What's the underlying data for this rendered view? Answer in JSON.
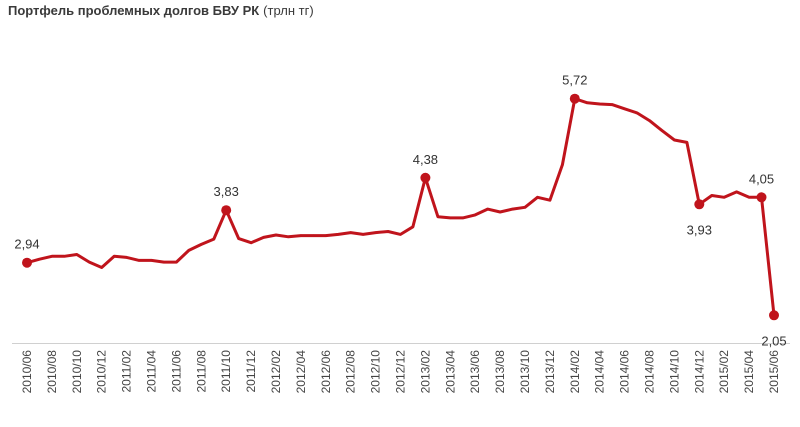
{
  "chart_data": {
    "type": "line",
    "title": "Портфель проблемных долгов БВУ РК",
    "unit": "(трлн тг)",
    "line_color": "#c0141c",
    "x": [
      "2010/06",
      "2010/07",
      "2010/08",
      "2010/09",
      "2010/10",
      "2010/11",
      "2010/12",
      "2011/01",
      "2011/02",
      "2011/03",
      "2011/04",
      "2011/05",
      "2011/06",
      "2011/07",
      "2011/08",
      "2011/09",
      "2011/10",
      "2011/11",
      "2011/12",
      "2012/01",
      "2012/02",
      "2012/03",
      "2012/04",
      "2012/05",
      "2012/06",
      "2012/07",
      "2012/08",
      "2012/09",
      "2012/10",
      "2012/11",
      "2012/12",
      "2013/01",
      "2013/02",
      "2013/03",
      "2013/04",
      "2013/05",
      "2013/06",
      "2013/07",
      "2013/08",
      "2013/09",
      "2013/10",
      "2013/11",
      "2013/12",
      "2014/01",
      "2014/02",
      "2014/03",
      "2014/04",
      "2014/05",
      "2014/06",
      "2014/07",
      "2014/08",
      "2014/09",
      "2014/10",
      "2014/11",
      "2014/12",
      "2015/01",
      "2015/02",
      "2015/03",
      "2015/04",
      "2015/05",
      "2015/06"
    ],
    "values": [
      2.94,
      3.0,
      3.05,
      3.05,
      3.08,
      2.95,
      2.86,
      3.05,
      3.03,
      2.98,
      2.98,
      2.95,
      2.95,
      3.15,
      3.25,
      3.34,
      3.83,
      3.35,
      3.28,
      3.37,
      3.41,
      3.38,
      3.4,
      3.4,
      3.4,
      3.42,
      3.45,
      3.42,
      3.45,
      3.47,
      3.42,
      3.55,
      4.38,
      3.72,
      3.7,
      3.7,
      3.75,
      3.85,
      3.8,
      3.85,
      3.88,
      4.05,
      4.0,
      4.6,
      5.72,
      5.65,
      5.63,
      5.62,
      5.55,
      5.48,
      5.35,
      5.18,
      5.02,
      4.98,
      3.93,
      4.08,
      4.05,
      4.14,
      4.05,
      4.05,
      2.05
    ],
    "x_tick_labels": [
      "2010/06",
      "2010/08",
      "2010/10",
      "2010/12",
      "2011/02",
      "2011/04",
      "2011/06",
      "2011/08",
      "2011/10",
      "2011/12",
      "2012/02",
      "2012/04",
      "2012/06",
      "2012/08",
      "2012/10",
      "2012/12",
      "2013/02",
      "2013/04",
      "2013/06",
      "2013/08",
      "2013/10",
      "2013/12",
      "2014/02",
      "2014/04",
      "2014/06",
      "2014/08",
      "2014/10",
      "2014/12",
      "2015/02",
      "2015/04",
      "2015/06"
    ],
    "annotations": [
      {
        "x": "2010/06",
        "label": "2,94",
        "position": "above"
      },
      {
        "x": "2011/10",
        "label": "3,83",
        "position": "above"
      },
      {
        "x": "2013/02",
        "label": "4,38",
        "position": "above"
      },
      {
        "x": "2014/02",
        "label": "5,72",
        "position": "above"
      },
      {
        "x": "2014/12",
        "label": "3,93",
        "position": "below"
      },
      {
        "x": "2015/05",
        "label": "4,05",
        "position": "above"
      },
      {
        "x": "2015/06",
        "label": "2,05",
        "position": "below"
      }
    ],
    "ylim": [
      0.8,
      6.5
    ],
    "grid": false,
    "legend": "none"
  }
}
